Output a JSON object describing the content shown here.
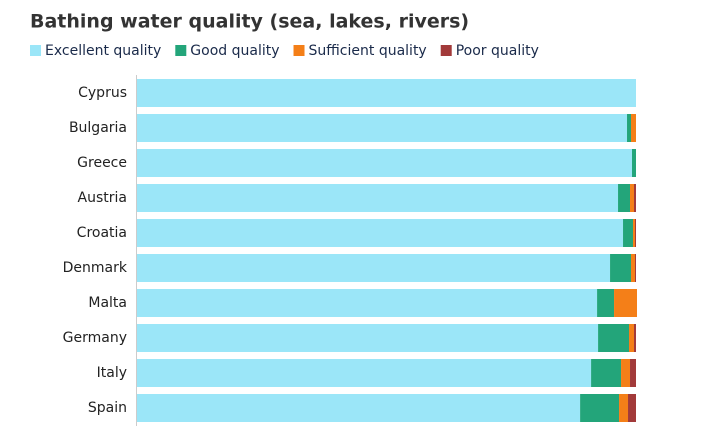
{
  "chart_data": {
    "type": "stacked-bar-horizontal",
    "title": "Bathing water quality (sea, lakes, rivers)",
    "categories": [
      "Cyprus",
      "Bulgaria",
      "Greece",
      "Austria",
      "Croatia",
      "Denmark",
      "Malta",
      "Germany",
      "Italy",
      "Spain"
    ],
    "xlim": [
      0,
      100
    ],
    "series": [
      {
        "name": "Excellent quality",
        "color": "#9be6f8",
        "values": [
          100,
          98.2,
          99.2,
          96.4,
          97.4,
          94.8,
          92.2,
          92.4,
          91.0,
          88.8
        ]
      },
      {
        "name": "Good quality",
        "color": "#23a57a",
        "values": [
          0,
          0.8,
          0.8,
          2.4,
          2.0,
          4.2,
          3.4,
          6.2,
          6.0,
          7.8
        ]
      },
      {
        "name": "Sufficient quality",
        "color": "#f47f18",
        "values": [
          0,
          1.0,
          0,
          0.8,
          0.4,
          0.8,
          4.6,
          1.0,
          1.8,
          1.8
        ]
      },
      {
        "name": "Poor quality",
        "color": "#a23a3a",
        "values": [
          0,
          0,
          0,
          0.4,
          0.2,
          0.2,
          0,
          0.4,
          1.2,
          1.6
        ]
      }
    ]
  }
}
